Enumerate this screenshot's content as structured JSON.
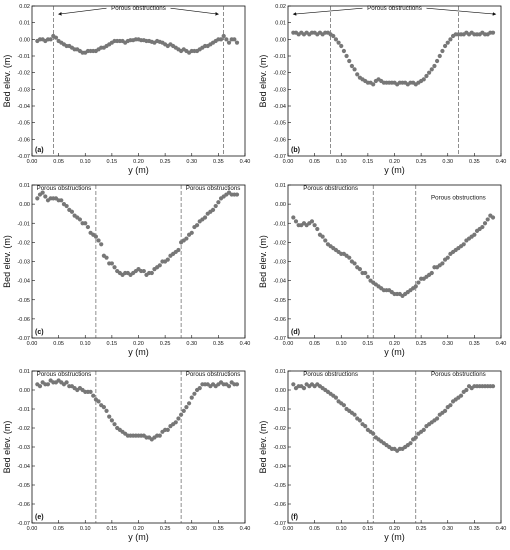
{
  "colors": {
    "point": "#777777",
    "axis": "#111111",
    "dashed": "#444444"
  },
  "chart_data": [
    {
      "type": "scatter",
      "panel_label": "(a)",
      "xlabel": "y (m)",
      "ylabel": "Bed elev. (m)",
      "xlim": [
        0.0,
        0.4
      ],
      "ylim": [
        -0.07,
        0.02
      ],
      "xticks": [
        "0.00",
        "0.05",
        "0.10",
        "0.15",
        "0.20",
        "0.25",
        "0.30",
        "0.35",
        "0.40"
      ],
      "yticks": [
        "-0.07",
        "-0.06",
        "-0.05",
        "-0.04",
        "-0.03",
        "-0.02",
        "-0.01",
        "0.00",
        "0.01",
        "0.02"
      ],
      "vlines": [
        0.04,
        0.36
      ],
      "annotations": [
        {
          "text": "Porous obstructions",
          "x": 0.2,
          "y": 0.0175,
          "arrows": [
            0.05,
            0.35
          ]
        }
      ],
      "x": [
        0.01,
        0.015,
        0.02,
        0.025,
        0.03,
        0.035,
        0.04,
        0.045,
        0.05,
        0.055,
        0.06,
        0.065,
        0.07,
        0.075,
        0.08,
        0.085,
        0.09,
        0.095,
        0.1,
        0.105,
        0.11,
        0.115,
        0.12,
        0.125,
        0.13,
        0.135,
        0.14,
        0.145,
        0.15,
        0.155,
        0.16,
        0.165,
        0.17,
        0.175,
        0.18,
        0.185,
        0.19,
        0.195,
        0.2,
        0.205,
        0.21,
        0.215,
        0.22,
        0.225,
        0.23,
        0.235,
        0.24,
        0.245,
        0.25,
        0.255,
        0.26,
        0.265,
        0.27,
        0.275,
        0.28,
        0.285,
        0.29,
        0.295,
        0.3,
        0.305,
        0.31,
        0.315,
        0.32,
        0.325,
        0.33,
        0.335,
        0.34,
        0.345,
        0.35,
        0.355,
        0.36,
        0.365,
        0.37,
        0.375,
        0.38,
        0.385
      ],
      "y": [
        -0.001,
        0.0,
        0.0,
        -0.001,
        0.0,
        0.0,
        0.002,
        0.001,
        -0.001,
        -0.002,
        -0.003,
        -0.004,
        -0.004,
        -0.005,
        -0.006,
        -0.006,
        -0.007,
        -0.008,
        -0.008,
        -0.007,
        -0.007,
        -0.007,
        -0.007,
        -0.006,
        -0.005,
        -0.005,
        -0.004,
        -0.003,
        -0.002,
        -0.001,
        -0.001,
        -0.001,
        -0.001,
        -0.002,
        -0.001,
        -0.0005,
        -0.0005,
        0.0,
        0.0,
        -0.0005,
        -0.0005,
        -0.001,
        -0.001,
        -0.0015,
        -0.002,
        -0.001,
        -0.0015,
        -0.002,
        -0.003,
        -0.004,
        -0.003,
        -0.004,
        -0.005,
        -0.006,
        -0.007,
        -0.006,
        -0.007,
        -0.008,
        -0.007,
        -0.007,
        -0.007,
        -0.006,
        -0.005,
        -0.004,
        -0.004,
        -0.003,
        -0.002,
        -0.001,
        0.0,
        0.0,
        0.002,
        0.0,
        -0.002,
        0.0,
        0.0,
        -0.002
      ]
    },
    {
      "type": "scatter",
      "panel_label": "(b)",
      "xlabel": "y (m)",
      "ylabel": "Bed elev. (m)",
      "xlim": [
        0.0,
        0.4
      ],
      "ylim": [
        -0.07,
        0.02
      ],
      "xticks": [
        "0.00",
        "0.05",
        "0.10",
        "0.15",
        "0.20",
        "0.25",
        "0.30",
        "0.35",
        "0.40"
      ],
      "yticks": [
        "-0.07",
        "-0.06",
        "-0.05",
        "-0.04",
        "-0.03",
        "-0.02",
        "-0.01",
        "0.00",
        "0.01",
        "0.02"
      ],
      "vlines": [
        0.08,
        0.32
      ],
      "annotations": [
        {
          "text": "Porous obstructions",
          "x": 0.2,
          "y": 0.0175,
          "arrows": [
            0.01,
            0.39
          ]
        }
      ],
      "x": [
        0.01,
        0.015,
        0.02,
        0.025,
        0.03,
        0.035,
        0.04,
        0.045,
        0.05,
        0.055,
        0.06,
        0.065,
        0.07,
        0.075,
        0.08,
        0.085,
        0.09,
        0.095,
        0.1,
        0.105,
        0.11,
        0.115,
        0.12,
        0.125,
        0.13,
        0.135,
        0.14,
        0.145,
        0.15,
        0.155,
        0.16,
        0.165,
        0.17,
        0.175,
        0.18,
        0.185,
        0.19,
        0.195,
        0.2,
        0.205,
        0.21,
        0.215,
        0.22,
        0.225,
        0.23,
        0.235,
        0.24,
        0.245,
        0.25,
        0.255,
        0.26,
        0.265,
        0.27,
        0.275,
        0.28,
        0.285,
        0.29,
        0.295,
        0.3,
        0.305,
        0.31,
        0.315,
        0.32,
        0.325,
        0.33,
        0.335,
        0.34,
        0.345,
        0.35,
        0.355,
        0.36,
        0.365,
        0.37,
        0.375,
        0.38,
        0.385
      ],
      "y": [
        0.004,
        0.004,
        0.003,
        0.004,
        0.003,
        0.004,
        0.003,
        0.004,
        0.004,
        0.003,
        0.004,
        0.003,
        0.004,
        0.004,
        0.003,
        0.002,
        0.0,
        -0.002,
        -0.004,
        -0.007,
        -0.01,
        -0.013,
        -0.016,
        -0.018,
        -0.021,
        -0.023,
        -0.024,
        -0.025,
        -0.026,
        -0.026,
        -0.027,
        -0.025,
        -0.024,
        -0.025,
        -0.026,
        -0.026,
        -0.026,
        -0.026,
        -0.026,
        -0.027,
        -0.026,
        -0.026,
        -0.026,
        -0.027,
        -0.026,
        -0.026,
        -0.027,
        -0.026,
        -0.025,
        -0.024,
        -0.022,
        -0.02,
        -0.018,
        -0.016,
        -0.013,
        -0.01,
        -0.007,
        -0.004,
        -0.002,
        0.0,
        0.002,
        0.003,
        0.003,
        0.003,
        0.003,
        0.004,
        0.003,
        0.004,
        0.003,
        0.003,
        0.003,
        0.004,
        0.003,
        0.003,
        0.004,
        0.004
      ]
    },
    {
      "type": "scatter",
      "panel_label": "(c)",
      "xlabel": "y (m)",
      "ylabel": "Bed elev. (m)",
      "xlim": [
        0.0,
        0.4
      ],
      "ylim": [
        -0.07,
        0.01
      ],
      "xticks": [
        "0.00",
        "0.05",
        "0.10",
        "0.15",
        "0.20",
        "0.25",
        "0.30",
        "0.35",
        "0.40"
      ],
      "yticks": [
        "-0.07",
        "-0.06",
        "-0.05",
        "-0.04",
        "-0.03",
        "-0.02",
        "-0.01",
        "0.00",
        "0.01"
      ],
      "vlines": [
        0.12,
        0.28
      ],
      "annotations": [
        {
          "text": "Porous obstructions",
          "x": 0.06,
          "y": 0.0075
        },
        {
          "text": "Porous obstructions",
          "x": 0.34,
          "y": 0.0075
        }
      ],
      "x": [
        0.01,
        0.015,
        0.02,
        0.025,
        0.03,
        0.035,
        0.04,
        0.045,
        0.05,
        0.055,
        0.06,
        0.065,
        0.07,
        0.075,
        0.08,
        0.085,
        0.09,
        0.095,
        0.1,
        0.105,
        0.11,
        0.115,
        0.12,
        0.125,
        0.13,
        0.135,
        0.14,
        0.145,
        0.15,
        0.155,
        0.16,
        0.165,
        0.17,
        0.175,
        0.18,
        0.185,
        0.19,
        0.195,
        0.2,
        0.205,
        0.21,
        0.215,
        0.22,
        0.225,
        0.23,
        0.235,
        0.24,
        0.245,
        0.25,
        0.255,
        0.26,
        0.265,
        0.27,
        0.275,
        0.28,
        0.285,
        0.29,
        0.295,
        0.3,
        0.305,
        0.31,
        0.315,
        0.32,
        0.325,
        0.33,
        0.335,
        0.34,
        0.345,
        0.35,
        0.355,
        0.36,
        0.365,
        0.37,
        0.375,
        0.38,
        0.385
      ],
      "y": [
        0.003,
        0.005,
        0.006,
        0.004,
        0.002,
        0.003,
        0.003,
        0.003,
        0.002,
        0.002,
        0.0,
        -0.001,
        -0.003,
        -0.004,
        -0.006,
        -0.007,
        -0.008,
        -0.01,
        -0.01,
        -0.012,
        -0.015,
        -0.016,
        -0.017,
        -0.019,
        -0.021,
        -0.027,
        -0.028,
        -0.031,
        -0.031,
        -0.033,
        -0.035,
        -0.036,
        -0.037,
        -0.036,
        -0.036,
        -0.037,
        -0.036,
        -0.035,
        -0.034,
        -0.035,
        -0.035,
        -0.037,
        -0.036,
        -0.036,
        -0.034,
        -0.033,
        -0.032,
        -0.03,
        -0.03,
        -0.029,
        -0.027,
        -0.026,
        -0.025,
        -0.024,
        -0.02,
        -0.019,
        -0.018,
        -0.016,
        -0.015,
        -0.012,
        -0.011,
        -0.009,
        -0.008,
        -0.007,
        -0.005,
        -0.004,
        -0.003,
        -0.001,
        0.001,
        0.003,
        0.004,
        0.005,
        0.006,
        0.005,
        0.005,
        0.005
      ]
    },
    {
      "type": "scatter",
      "panel_label": "(d)",
      "xlabel": "y (m)",
      "ylabel": "Bed elev. (m)",
      "xlim": [
        0.0,
        0.4
      ],
      "ylim": [
        -0.07,
        0.01
      ],
      "xticks": [
        "0.00",
        "0.05",
        "0.10",
        "0.15",
        "0.20",
        "0.25",
        "0.30",
        "0.35",
        "0.40"
      ],
      "yticks": [
        "-0.07",
        "-0.06",
        "-0.05",
        "-0.04",
        "-0.03",
        "-0.02",
        "-0.01",
        "0.00",
        "0.01"
      ],
      "vlines": [
        0.16,
        0.24
      ],
      "annotations": [
        {
          "text": "Porous obstructions",
          "x": 0.08,
          "y": 0.0075
        },
        {
          "text": "Porous obstructions",
          "x": 0.32,
          "y": 0.0025
        }
      ],
      "x": [
        0.01,
        0.015,
        0.02,
        0.025,
        0.03,
        0.035,
        0.04,
        0.045,
        0.05,
        0.055,
        0.06,
        0.065,
        0.07,
        0.075,
        0.08,
        0.085,
        0.09,
        0.095,
        0.1,
        0.105,
        0.11,
        0.115,
        0.12,
        0.125,
        0.13,
        0.135,
        0.14,
        0.145,
        0.15,
        0.155,
        0.16,
        0.165,
        0.17,
        0.175,
        0.18,
        0.185,
        0.19,
        0.195,
        0.2,
        0.205,
        0.21,
        0.215,
        0.22,
        0.225,
        0.23,
        0.235,
        0.24,
        0.245,
        0.25,
        0.255,
        0.26,
        0.265,
        0.27,
        0.275,
        0.28,
        0.285,
        0.29,
        0.295,
        0.3,
        0.305,
        0.31,
        0.315,
        0.32,
        0.325,
        0.33,
        0.335,
        0.34,
        0.345,
        0.35,
        0.355,
        0.36,
        0.365,
        0.37,
        0.375,
        0.38,
        0.385
      ],
      "y": [
        -0.007,
        -0.009,
        -0.011,
        -0.011,
        -0.01,
        -0.011,
        -0.01,
        -0.009,
        -0.011,
        -0.013,
        -0.016,
        -0.017,
        -0.019,
        -0.021,
        -0.022,
        -0.023,
        -0.024,
        -0.025,
        -0.026,
        -0.026,
        -0.027,
        -0.028,
        -0.03,
        -0.031,
        -0.033,
        -0.034,
        -0.036,
        -0.036,
        -0.038,
        -0.04,
        -0.041,
        -0.042,
        -0.043,
        -0.044,
        -0.045,
        -0.045,
        -0.045,
        -0.046,
        -0.047,
        -0.047,
        -0.047,
        -0.048,
        -0.047,
        -0.046,
        -0.045,
        -0.044,
        -0.043,
        -0.041,
        -0.039,
        -0.039,
        -0.038,
        -0.037,
        -0.036,
        -0.033,
        -0.033,
        -0.032,
        -0.031,
        -0.029,
        -0.028,
        -0.026,
        -0.025,
        -0.024,
        -0.023,
        -0.022,
        -0.021,
        -0.019,
        -0.018,
        -0.017,
        -0.016,
        -0.014,
        -0.013,
        -0.012,
        -0.01,
        -0.008,
        -0.006,
        -0.007
      ]
    },
    {
      "type": "scatter",
      "panel_label": "(e)",
      "xlabel": "y (m)",
      "ylabel": "Bed elev. (m)",
      "xlim": [
        0.0,
        0.4
      ],
      "ylim": [
        -0.07,
        0.01
      ],
      "xticks": [
        "0.00",
        "0.05",
        "0.10",
        "0.15",
        "0.20",
        "0.25",
        "0.30",
        "0.35",
        "0.40"
      ],
      "yticks": [
        "-0.07",
        "-0.06",
        "-0.05",
        "-0.04",
        "-0.03",
        "-0.02",
        "-0.01",
        "0.00",
        "0.01"
      ],
      "vlines": [
        0.12,
        0.28
      ],
      "annotations": [
        {
          "text": "Porous obstructions",
          "x": 0.06,
          "y": 0.0075
        },
        {
          "text": "Porous obstructions",
          "x": 0.34,
          "y": 0.0075
        }
      ],
      "x": [
        0.01,
        0.015,
        0.02,
        0.025,
        0.03,
        0.035,
        0.04,
        0.045,
        0.05,
        0.055,
        0.06,
        0.065,
        0.07,
        0.075,
        0.08,
        0.085,
        0.09,
        0.095,
        0.1,
        0.105,
        0.11,
        0.115,
        0.12,
        0.125,
        0.13,
        0.135,
        0.14,
        0.145,
        0.15,
        0.155,
        0.16,
        0.165,
        0.17,
        0.175,
        0.18,
        0.185,
        0.19,
        0.195,
        0.2,
        0.205,
        0.21,
        0.215,
        0.22,
        0.225,
        0.23,
        0.235,
        0.24,
        0.245,
        0.25,
        0.255,
        0.26,
        0.265,
        0.27,
        0.275,
        0.28,
        0.285,
        0.29,
        0.295,
        0.3,
        0.305,
        0.31,
        0.315,
        0.32,
        0.325,
        0.33,
        0.335,
        0.34,
        0.345,
        0.35,
        0.355,
        0.36,
        0.365,
        0.37,
        0.375,
        0.38,
        0.385
      ],
      "y": [
        0.003,
        0.002,
        0.004,
        0.003,
        0.003,
        0.005,
        0.004,
        0.004,
        0.005,
        0.004,
        0.003,
        0.004,
        0.002,
        0.002,
        0.001,
        0.0,
        0.001,
        0.0,
        -0.001,
        -0.001,
        -0.001,
        -0.003,
        -0.005,
        -0.006,
        -0.008,
        -0.009,
        -0.011,
        -0.014,
        -0.016,
        -0.018,
        -0.02,
        -0.021,
        -0.022,
        -0.023,
        -0.024,
        -0.024,
        -0.024,
        -0.024,
        -0.024,
        -0.024,
        -0.024,
        -0.025,
        -0.025,
        -0.026,
        -0.025,
        -0.024,
        -0.024,
        -0.022,
        -0.021,
        -0.021,
        -0.019,
        -0.018,
        -0.017,
        -0.015,
        -0.013,
        -0.011,
        -0.009,
        -0.007,
        -0.004,
        -0.002,
        0.0,
        0.001,
        0.003,
        0.003,
        0.003,
        0.002,
        0.003,
        0.002,
        0.003,
        0.004,
        0.003,
        0.003,
        0.002,
        0.004,
        0.003,
        0.003
      ]
    },
    {
      "type": "scatter",
      "panel_label": "(f)",
      "xlabel": "y (m)",
      "ylabel": "Bed elev. (m)",
      "xlim": [
        0.0,
        0.4
      ],
      "ylim": [
        -0.07,
        0.01
      ],
      "xticks": [
        "0.00",
        "0.05",
        "0.10",
        "0.15",
        "0.20",
        "0.25",
        "0.30",
        "0.35",
        "0.40"
      ],
      "yticks": [
        "-0.07",
        "-0.06",
        "-0.05",
        "-0.04",
        "-0.03",
        "-0.02",
        "-0.01",
        "0.00",
        "0.01"
      ],
      "vlines": [
        0.16,
        0.24
      ],
      "annotations": [
        {
          "text": "Porous obstructions",
          "x": 0.08,
          "y": 0.0075
        },
        {
          "text": "Porous obstructions",
          "x": 0.32,
          "y": 0.0075
        }
      ],
      "x": [
        0.01,
        0.015,
        0.02,
        0.025,
        0.03,
        0.035,
        0.04,
        0.045,
        0.05,
        0.055,
        0.06,
        0.065,
        0.07,
        0.075,
        0.08,
        0.085,
        0.09,
        0.095,
        0.1,
        0.105,
        0.11,
        0.115,
        0.12,
        0.125,
        0.13,
        0.135,
        0.14,
        0.145,
        0.15,
        0.155,
        0.16,
        0.165,
        0.17,
        0.175,
        0.18,
        0.185,
        0.19,
        0.195,
        0.2,
        0.205,
        0.21,
        0.215,
        0.22,
        0.225,
        0.23,
        0.235,
        0.24,
        0.245,
        0.25,
        0.255,
        0.26,
        0.265,
        0.27,
        0.275,
        0.28,
        0.285,
        0.29,
        0.295,
        0.3,
        0.305,
        0.31,
        0.315,
        0.32,
        0.325,
        0.33,
        0.335,
        0.34,
        0.345,
        0.35,
        0.355,
        0.36,
        0.365,
        0.37,
        0.375,
        0.38,
        0.385
      ],
      "y": [
        0.003,
        0.001,
        0.002,
        0.002,
        0.001,
        0.003,
        0.002,
        0.003,
        0.002,
        0.003,
        0.002,
        0.001,
        0.0,
        -0.001,
        -0.002,
        -0.003,
        -0.004,
        -0.006,
        -0.007,
        -0.008,
        -0.01,
        -0.011,
        -0.012,
        -0.013,
        -0.015,
        -0.016,
        -0.018,
        -0.019,
        -0.021,
        -0.022,
        -0.023,
        -0.025,
        -0.026,
        -0.027,
        -0.028,
        -0.029,
        -0.03,
        -0.031,
        -0.031,
        -0.032,
        -0.031,
        -0.031,
        -0.03,
        -0.029,
        -0.028,
        -0.026,
        -0.025,
        -0.023,
        -0.022,
        -0.021,
        -0.019,
        -0.018,
        -0.017,
        -0.016,
        -0.015,
        -0.013,
        -0.012,
        -0.011,
        -0.009,
        -0.008,
        -0.006,
        -0.005,
        -0.004,
        -0.003,
        -0.001,
        0.0,
        0.002,
        0.001,
        0.002,
        0.002,
        0.002,
        0.002,
        0.002,
        0.002,
        0.002,
        0.002
      ]
    }
  ]
}
